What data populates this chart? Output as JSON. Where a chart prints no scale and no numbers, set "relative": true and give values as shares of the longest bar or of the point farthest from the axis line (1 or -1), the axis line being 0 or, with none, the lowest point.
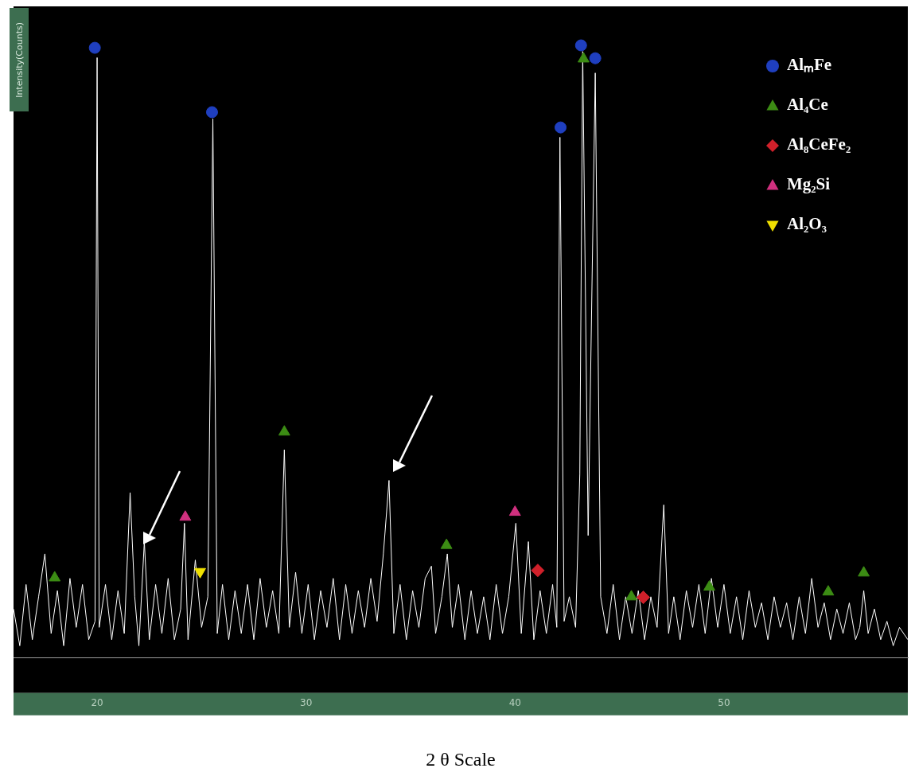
{
  "chart_data": {
    "type": "line",
    "xlabel": "2 θ Scale",
    "ylabel": "Intensity(Counts)",
    "relative": true,
    "xlim": [
      16,
      58.8
    ],
    "xticks": [
      20,
      30,
      40,
      50
    ],
    "grid": false,
    "legend": "top right",
    "series": [
      {
        "type": "line",
        "color": "#ffffff",
        "marker": "none",
        "x": [
          16.0,
          16.3,
          16.6,
          16.9,
          17.2,
          17.5,
          17.8,
          18.1,
          18.4,
          18.7,
          19.0,
          19.3,
          19.6,
          19.9,
          20.0,
          20.1,
          20.4,
          20.7,
          21.0,
          21.3,
          21.58,
          21.8,
          22.0,
          22.26,
          22.5,
          22.8,
          23.1,
          23.4,
          23.7,
          24.0,
          24.18,
          24.35,
          24.7,
          25.0,
          25.3,
          25.54,
          25.75,
          26.0,
          26.3,
          26.6,
          26.9,
          27.2,
          27.5,
          27.8,
          28.1,
          28.4,
          28.7,
          28.96,
          29.2,
          29.5,
          29.8,
          30.1,
          30.4,
          30.7,
          31.0,
          31.3,
          31.6,
          31.9,
          32.2,
          32.5,
          32.8,
          33.1,
          33.4,
          33.7,
          33.97,
          34.2,
          34.5,
          34.8,
          35.1,
          35.4,
          35.7,
          36.0,
          36.2,
          36.5,
          36.76,
          37.0,
          37.3,
          37.6,
          37.9,
          38.2,
          38.5,
          38.8,
          39.1,
          39.4,
          39.7,
          40.04,
          40.3,
          40.64,
          40.9,
          41.2,
          41.5,
          41.8,
          42.0,
          42.15,
          42.35,
          42.6,
          42.9,
          43.1,
          43.24,
          43.5,
          43.84,
          44.1,
          44.4,
          44.7,
          45.0,
          45.3,
          45.6,
          45.9,
          46.2,
          46.5,
          46.8,
          47.12,
          47.35,
          47.6,
          47.9,
          48.2,
          48.5,
          48.8,
          49.1,
          49.4,
          49.7,
          50.0,
          50.3,
          50.6,
          50.9,
          51.2,
          51.5,
          51.8,
          52.1,
          52.4,
          52.7,
          53.0,
          53.3,
          53.6,
          53.9,
          54.2,
          54.5,
          54.8,
          55.1,
          55.4,
          55.7,
          56.0,
          56.3,
          56.5,
          56.69,
          56.9,
          57.2,
          57.5,
          57.8,
          58.1,
          58.4,
          58.8
        ],
        "values": [
          0.08,
          0.02,
          0.12,
          0.03,
          0.1,
          0.17,
          0.04,
          0.11,
          0.02,
          0.13,
          0.05,
          0.12,
          0.03,
          0.06,
          0.98,
          0.05,
          0.12,
          0.03,
          0.11,
          0.04,
          0.27,
          0.1,
          0.02,
          0.19,
          0.03,
          0.12,
          0.04,
          0.13,
          0.03,
          0.08,
          0.22,
          0.03,
          0.16,
          0.05,
          0.1,
          0.88,
          0.04,
          0.12,
          0.03,
          0.11,
          0.04,
          0.12,
          0.03,
          0.13,
          0.05,
          0.11,
          0.04,
          0.34,
          0.05,
          0.14,
          0.04,
          0.12,
          0.03,
          0.11,
          0.05,
          0.13,
          0.03,
          0.12,
          0.04,
          0.11,
          0.05,
          0.13,
          0.06,
          0.17,
          0.29,
          0.04,
          0.12,
          0.03,
          0.11,
          0.05,
          0.13,
          0.15,
          0.04,
          0.1,
          0.17,
          0.05,
          0.12,
          0.03,
          0.11,
          0.04,
          0.1,
          0.03,
          0.12,
          0.04,
          0.1,
          0.22,
          0.04,
          0.19,
          0.03,
          0.11,
          0.04,
          0.12,
          0.05,
          0.85,
          0.06,
          0.1,
          0.05,
          0.3,
          0.99,
          0.2,
          0.955,
          0.1,
          0.04,
          0.12,
          0.03,
          0.1,
          0.04,
          0.11,
          0.03,
          0.1,
          0.05,
          0.25,
          0.04,
          0.1,
          0.03,
          0.11,
          0.05,
          0.12,
          0.04,
          0.13,
          0.05,
          0.12,
          0.04,
          0.1,
          0.03,
          0.11,
          0.05,
          0.09,
          0.03,
          0.1,
          0.05,
          0.09,
          0.03,
          0.1,
          0.04,
          0.13,
          0.05,
          0.09,
          0.03,
          0.08,
          0.04,
          0.09,
          0.03,
          0.05,
          0.11,
          0.04,
          0.08,
          0.03,
          0.06,
          0.02,
          0.05,
          0.03
        ]
      },
      {
        "type": "scatter",
        "name": "AlₘFe",
        "color": "#1f3fbf",
        "marker": "circle",
        "x": [
          19.89,
          25.5,
          42.18,
          43.16,
          43.84
        ],
        "values": [
          0.996,
          0.891,
          0.866,
          1,
          0.979
        ]
      },
      {
        "type": "scatter",
        "name": "Al₄Ce",
        "color": "#3c8c14",
        "marker": "triangle",
        "x": [
          17.97,
          28.96,
          36.72,
          43.28,
          45.57,
          49.3,
          54.99,
          56.69
        ],
        "values": [
          0.131,
          0.369,
          0.184,
          0.978,
          0.1,
          0.116,
          0.108,
          0.139
        ]
      },
      {
        "type": "scatter",
        "name": "Al₈CeFe₂",
        "color": "#d0202a",
        "marker": "diamond",
        "x": [
          41.09,
          46.14
        ],
        "values": [
          0.143,
          0.099
        ]
      },
      {
        "type": "scatter",
        "name": "Mg₂Si",
        "color": "#d0307f",
        "marker": "triangle",
        "x": [
          24.22,
          40.0
        ],
        "values": [
          0.23,
          0.238
        ]
      },
      {
        "type": "scatter",
        "name": "Al₂O₃",
        "color": "#f0e000",
        "marker": "triangle-down",
        "x": [
          24.93
        ],
        "values": [
          0.141
        ]
      }
    ]
  }
}
